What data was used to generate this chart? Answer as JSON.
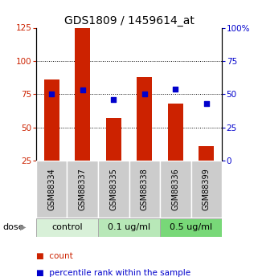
{
  "title": "GDS1809 / 1459614_at",
  "samples": [
    "GSM88334",
    "GSM88337",
    "GSM88335",
    "GSM88338",
    "GSM88336",
    "GSM88399"
  ],
  "bar_values": [
    86,
    125,
    57,
    88,
    68,
    36
  ],
  "scatter_values": [
    50,
    53,
    46,
    50,
    54,
    43
  ],
  "bar_color": "#cc2200",
  "scatter_color": "#0000cc",
  "ylim_left": [
    25,
    125
  ],
  "ylim_right": [
    0,
    100
  ],
  "yticks_left": [
    25,
    50,
    75,
    100,
    125
  ],
  "yticks_right": [
    0,
    25,
    50,
    75,
    100
  ],
  "ytick_labels_right": [
    "0",
    "25",
    "50",
    "75",
    "100%"
  ],
  "hlines": [
    50,
    75,
    100
  ],
  "dose_groups": [
    {
      "label": "control",
      "span": [
        0,
        2
      ],
      "color": "#d8f0d8"
    },
    {
      "label": "0.1 ug/ml",
      "span": [
        2,
        4
      ],
      "color": "#b8e8b8"
    },
    {
      "label": "0.5 ug/ml",
      "span": [
        4,
        6
      ],
      "color": "#78d878"
    }
  ],
  "dose_label": "dose",
  "legend_count": "count",
  "legend_pct": "percentile rank within the sample",
  "bar_width": 0.5,
  "title_fontsize": 10,
  "tick_fontsize": 7.5,
  "sample_fontsize": 7,
  "dose_fontsize": 8,
  "legend_fontsize": 7.5,
  "sample_box_color": "#cccccc",
  "box_border_color": "#aaaaaa"
}
